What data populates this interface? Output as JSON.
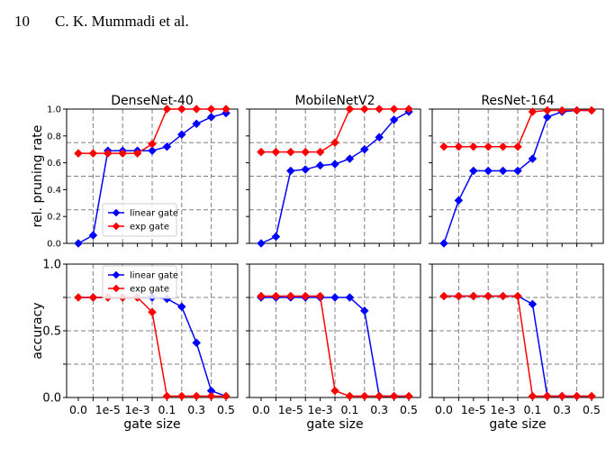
{
  "page": {
    "page_number": "10",
    "running_head": "C. K. Mummadi et al."
  },
  "figure": {
    "column_titles": [
      "DenseNet-40",
      "MobileNetV2",
      "ResNet-164"
    ],
    "shared_xlabel": "gate size",
    "colors": {
      "linear": "#0000ff",
      "exp": "#ff0000",
      "grid": "#808080"
    }
  },
  "chart_data": [
    {
      "type": "line",
      "title": "DenseNet-40",
      "row": "pruning",
      "xlabel": "",
      "ylabel": "rel. pruning rate",
      "x": [
        "0.0",
        "",
        "1e-5",
        "",
        "1e-3",
        "",
        "0.1",
        "",
        "0.3",
        "",
        "0.5"
      ],
      "ylim": [
        0,
        1.0
      ],
      "yticks": [
        "0.0",
        "0.2",
        "0.4",
        "0.6",
        "0.8",
        "1.0"
      ],
      "legend": "lower-left",
      "grid": true,
      "series": [
        {
          "name": "linear gate",
          "values": [
            0.0,
            0.06,
            0.69,
            0.69,
            0.69,
            0.69,
            0.72,
            0.81,
            0.89,
            0.94,
            0.97
          ]
        },
        {
          "name": "exp gate",
          "values": [
            0.67,
            0.67,
            0.67,
            0.67,
            0.67,
            0.74,
            1.0,
            1.0,
            1.0,
            1.0,
            1.0
          ]
        }
      ]
    },
    {
      "type": "line",
      "title": "MobileNetV2",
      "row": "pruning",
      "xlabel": "",
      "ylabel": "",
      "x": [
        "0.0",
        "",
        "1e-5",
        "",
        "1e-3",
        "",
        "0.1",
        "",
        "0.3",
        "",
        "0.5"
      ],
      "ylim": [
        0,
        1.0
      ],
      "grid": true,
      "series": [
        {
          "name": "linear gate",
          "values": [
            0.0,
            0.05,
            0.54,
            0.55,
            0.58,
            0.59,
            0.63,
            0.7,
            0.79,
            0.92,
            0.98
          ]
        },
        {
          "name": "exp gate",
          "values": [
            0.68,
            0.68,
            0.68,
            0.68,
            0.68,
            0.75,
            1.0,
            1.0,
            1.0,
            1.0,
            1.0
          ]
        }
      ]
    },
    {
      "type": "line",
      "title": "ResNet-164",
      "row": "pruning",
      "xlabel": "",
      "ylabel": "",
      "x": [
        "0.0",
        "",
        "1e-5",
        "",
        "1e-3",
        "",
        "0.1",
        "",
        "0.3",
        "",
        "0.5"
      ],
      "ylim": [
        0,
        1.0
      ],
      "grid": true,
      "series": [
        {
          "name": "linear gate",
          "values": [
            0.0,
            0.32,
            0.54,
            0.54,
            0.54,
            0.54,
            0.63,
            0.94,
            0.98,
            0.99,
            0.99
          ]
        },
        {
          "name": "exp gate",
          "values": [
            0.72,
            0.72,
            0.72,
            0.72,
            0.72,
            0.72,
            0.98,
            0.99,
            0.99,
            0.99,
            0.99
          ]
        }
      ]
    },
    {
      "type": "line",
      "title": "",
      "row": "accuracy",
      "xlabel": "gate size",
      "ylabel": "accuracy",
      "x": [
        "0.0",
        "",
        "1e-5",
        "",
        "1e-3",
        "",
        "0.1",
        "",
        "0.3",
        "",
        "0.5"
      ],
      "ylim": [
        0,
        1.0
      ],
      "yticks": [
        "0.0",
        "",
        "0.5",
        "",
        "1.0"
      ],
      "legend": "upper-left",
      "grid": true,
      "series": [
        {
          "name": "linear gate",
          "values": [
            0.75,
            0.75,
            0.75,
            0.75,
            0.75,
            0.75,
            0.74,
            0.68,
            0.41,
            0.05,
            0.01
          ]
        },
        {
          "name": "exp gate",
          "values": [
            0.75,
            0.75,
            0.75,
            0.75,
            0.75,
            0.64,
            0.01,
            0.01,
            0.01,
            0.01,
            0.01
          ]
        }
      ]
    },
    {
      "type": "line",
      "title": "",
      "row": "accuracy",
      "xlabel": "gate size",
      "ylabel": "",
      "x": [
        "0.0",
        "",
        "1e-5",
        "",
        "1e-3",
        "",
        "0.1",
        "",
        "0.3",
        "",
        "0.5"
      ],
      "ylim": [
        0,
        1.0
      ],
      "grid": true,
      "series": [
        {
          "name": "linear gate",
          "values": [
            0.75,
            0.75,
            0.75,
            0.75,
            0.75,
            0.75,
            0.75,
            0.65,
            0.01,
            0.01,
            0.01
          ]
        },
        {
          "name": "exp gate",
          "values": [
            0.76,
            0.76,
            0.76,
            0.76,
            0.76,
            0.05,
            0.01,
            0.01,
            0.01,
            0.01,
            0.01
          ]
        }
      ]
    },
    {
      "type": "line",
      "title": "",
      "row": "accuracy",
      "xlabel": "gate size",
      "ylabel": "",
      "x": [
        "0.0",
        "",
        "1e-5",
        "",
        "1e-3",
        "",
        "0.1",
        "",
        "0.3",
        "",
        "0.5"
      ],
      "ylim": [
        0,
        1.0
      ],
      "grid": true,
      "series": [
        {
          "name": "linear gate",
          "values": [
            0.76,
            0.76,
            0.76,
            0.76,
            0.76,
            0.76,
            0.7,
            0.01,
            0.01,
            0.01,
            0.01
          ]
        },
        {
          "name": "exp gate",
          "values": [
            0.76,
            0.76,
            0.76,
            0.76,
            0.76,
            0.76,
            0.01,
            0.01,
            0.01,
            0.01,
            0.01
          ]
        }
      ]
    }
  ]
}
